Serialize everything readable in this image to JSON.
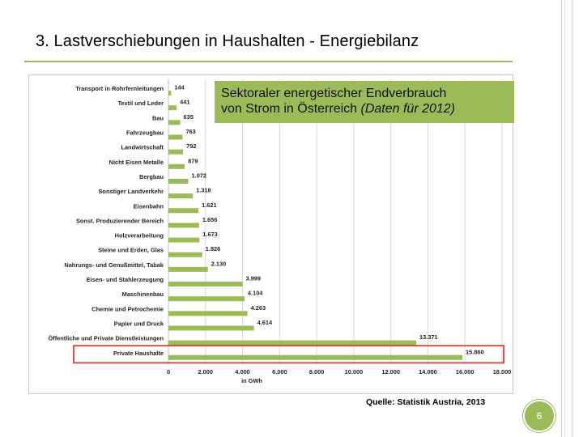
{
  "slide": {
    "title": "3. Lastverschiebungen in Haushalten - Energiebilanz",
    "subtitle_line1": "Sektoraler energetischer Endverbrauch",
    "subtitle_line2_plain": "von Strom in Österreich ",
    "subtitle_line2_italic": "(Daten für 2012)",
    "source": "Quelle: Statistik Austria, 2013",
    "page_number": "6"
  },
  "colors": {
    "bar": "#9bbb59",
    "grid": "#d9d9d9",
    "highlight": "#e03c31",
    "accent": "#9bbb59"
  },
  "chart_data": {
    "type": "bar",
    "orientation": "horizontal",
    "categories": [
      "Transport in Rohrfernleitungen",
      "Textil und Leder",
      "Bau",
      "Fahrzeugbau",
      "Landwirtschaft",
      "Nicht Eisen Metalle",
      "Bergbau",
      "Sonstiger Landverkehr",
      "Eisenbahn",
      "Sonst. Produzierender Bereich",
      "Holzverarbeitung",
      "Steine und Erden, Glas",
      "Nahrungs- und Genußmittel, Tabak",
      "Eisen- und Stahlerzeugung",
      "Maschinenbau",
      "Chemie und Petrochemie",
      "Papier und Druck",
      "Öffentliche und Private Dienstleistungen",
      "Private Haushalte"
    ],
    "values": [
      144,
      441,
      635,
      763,
      792,
      879,
      1072,
      1318,
      1621,
      1656,
      1673,
      1826,
      2130,
      3999,
      4104,
      4263,
      4614,
      13371,
      15860
    ],
    "value_labels": [
      "144",
      "441",
      "635",
      "763",
      "792",
      "879",
      "1.072",
      "1.318",
      "1.621",
      "1.656",
      "1.673",
      "1.826",
      "2.130",
      "3.999",
      "4.104",
      "4.263",
      "4.614",
      "13.371",
      "15.860"
    ],
    "xlim": [
      0,
      18000
    ],
    "xticks": [
      0,
      2000,
      4000,
      6000,
      8000,
      10000,
      12000,
      14000,
      16000,
      18000
    ],
    "xtick_labels": [
      "0",
      "2.000",
      "4.000",
      "6.000",
      "8.000",
      "10.000",
      "12.000",
      "14.000",
      "16.000",
      "18.000"
    ],
    "xlabel": "in GWh",
    "grid": true,
    "highlighted_category": "Private Haushalte"
  }
}
